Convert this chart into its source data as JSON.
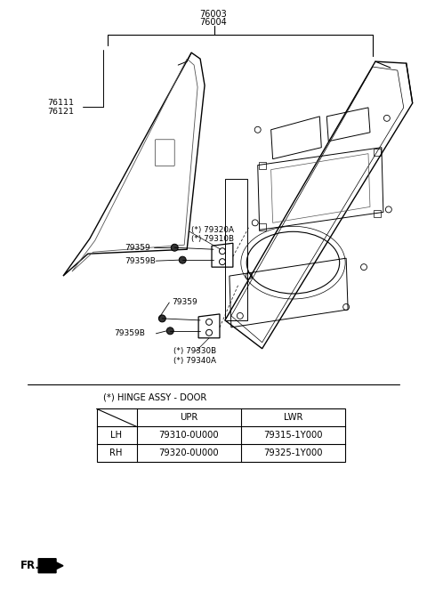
{
  "bg_color": "#ffffff",
  "part_numbers_top": [
    "76003",
    "76004"
  ],
  "part_numbers_left": [
    "76111",
    "76121"
  ],
  "hinge_label": "(*) HINGE ASSY - DOOR",
  "table_rows": [
    [
      "LH",
      "79310-0U000",
      "79315-1Y000"
    ],
    [
      "RH",
      "79320-0U000",
      "79325-1Y000"
    ]
  ],
  "fr_label": "FR."
}
